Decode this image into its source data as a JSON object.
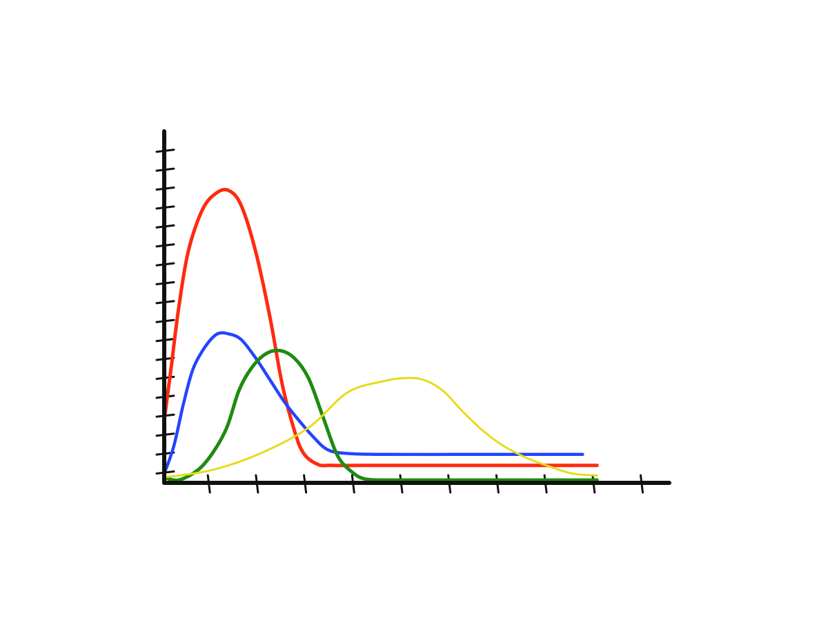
{
  "chart_data": {
    "type": "line",
    "title": "",
    "xlabel": "",
    "ylabel": "",
    "x_tick_count": 10,
    "y_tick_count": 18,
    "xlim": [
      0,
      10
    ],
    "ylim": [
      0,
      18
    ],
    "grid": false,
    "legend": "none",
    "series": [
      {
        "color": "#ff2a10",
        "x": [
          0,
          0.15,
          0.3,
          0.5,
          0.8,
          1.1,
          1.35,
          1.6,
          1.9,
          2.2,
          2.45,
          2.7,
          2.9,
          3.2,
          3.5,
          4.5,
          6.0,
          7.5,
          9.0
        ],
        "y": [
          3.4,
          6.4,
          9.5,
          12.6,
          14.9,
          15.8,
          15.9,
          15.1,
          12.6,
          9.0,
          5.4,
          2.9,
          1.6,
          1.0,
          0.95,
          0.95,
          0.95,
          0.95,
          0.95
        ]
      },
      {
        "color": "#2244ff",
        "x": [
          0,
          0.2,
          0.4,
          0.6,
          0.85,
          1.1,
          1.35,
          1.6,
          1.9,
          2.2,
          2.5,
          2.8,
          3.1,
          3.4,
          3.8,
          4.5,
          6.0,
          7.5,
          8.7
        ],
        "y": [
          0.5,
          2.0,
          4.3,
          6.2,
          7.4,
          8.1,
          8.1,
          7.8,
          6.8,
          5.6,
          4.4,
          3.4,
          2.5,
          1.8,
          1.6,
          1.55,
          1.55,
          1.55,
          1.55
        ]
      },
      {
        "color": "#1f8a0f",
        "x": [
          0,
          0.3,
          0.7,
          1.0,
          1.3,
          1.55,
          1.8,
          2.1,
          2.4,
          2.7,
          3.0,
          3.3,
          3.6,
          3.9,
          4.2,
          4.8,
          6.0,
          7.5,
          9.0
        ],
        "y": [
          0.3,
          0.15,
          0.7,
          1.6,
          3.0,
          5.0,
          6.2,
          7.0,
          7.2,
          6.8,
          5.7,
          3.6,
          1.5,
          0.6,
          0.2,
          0.15,
          0.15,
          0.15,
          0.15
        ]
      },
      {
        "color": "#e5dc1a",
        "x": [
          0,
          1.0,
          2.0,
          3.0,
          3.8,
          4.5,
          5.0,
          5.4,
          5.8,
          6.2,
          6.6,
          7.0,
          7.5,
          8.0,
          8.5,
          9.0
        ],
        "y": [
          0.3,
          0.7,
          1.6,
          3.0,
          4.9,
          5.5,
          5.7,
          5.6,
          5.0,
          3.9,
          2.9,
          2.1,
          1.4,
          0.9,
          0.5,
          0.4
        ]
      }
    ]
  }
}
